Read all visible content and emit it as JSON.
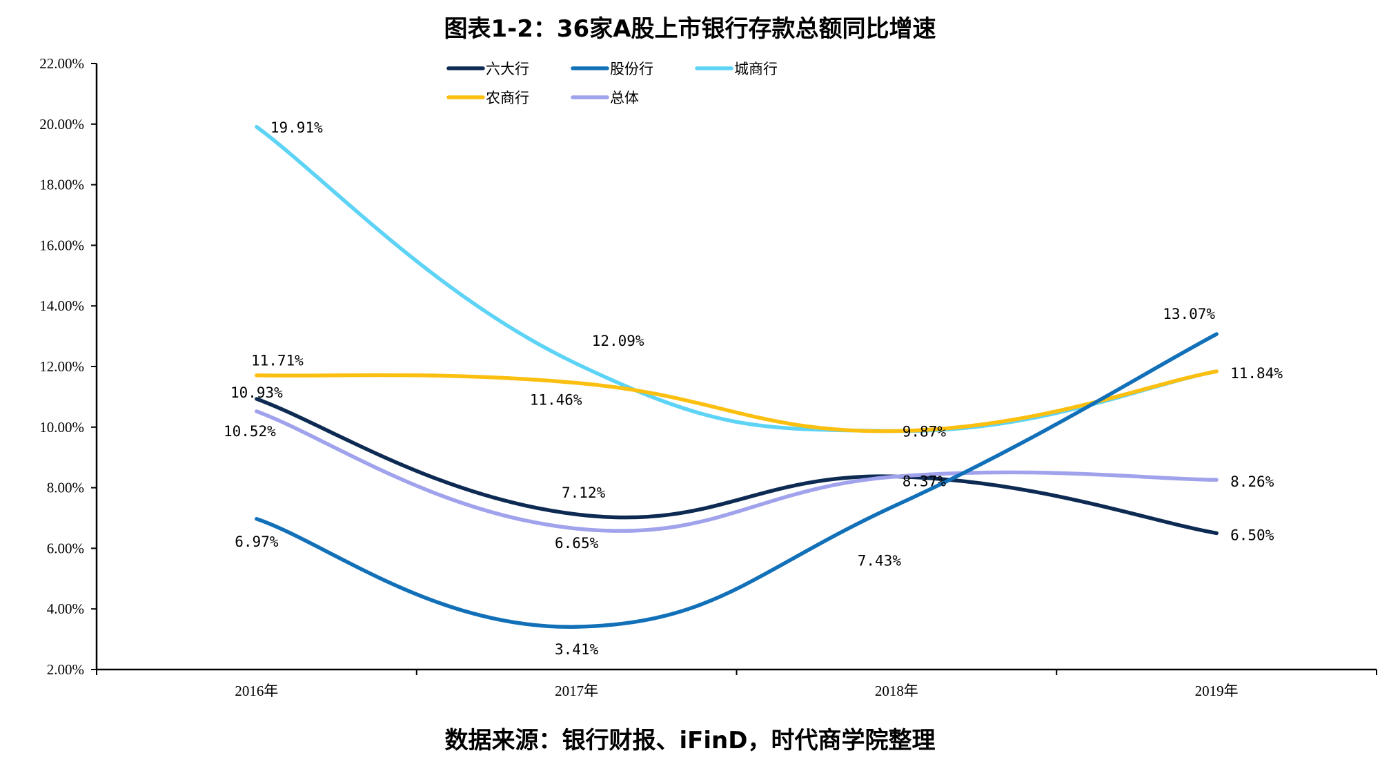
{
  "title": "图表1-2：36家A股上市银行存款总额同比增速",
  "source": "数据来源：银行财报、iFinD，时代商学院整理",
  "chart_data": {
    "type": "line",
    "title": "图表1-2：36家A股上市银行存款总额同比增速",
    "xlabel": "",
    "ylabel": "",
    "categories": [
      "2016年",
      "2017年",
      "2018年",
      "2019年"
    ],
    "ylim": [
      2,
      22
    ],
    "yticks": [
      2,
      4,
      6,
      8,
      10,
      12,
      14,
      16,
      18,
      20,
      22
    ],
    "ytick_labels": [
      "2.00%",
      "4.00%",
      "6.00%",
      "8.00%",
      "10.00%",
      "12.00%",
      "14.00%",
      "16.00%",
      "18.00%",
      "20.00%",
      "22.00%"
    ],
    "grid": false,
    "legend_position": "top-center",
    "smooth": true,
    "series": [
      {
        "name": "六大行",
        "color": "#0d2a52",
        "values": [
          10.93,
          7.12,
          8.37,
          6.5
        ],
        "labels": [
          "10.93%",
          "7.12%",
          "8.37%",
          "6.50%"
        ]
      },
      {
        "name": "股份行",
        "color": "#1170b8",
        "values": [
          6.97,
          3.41,
          7.43,
          13.07
        ],
        "labels": [
          "6.97%",
          "3.41%",
          "7.43%",
          "13.07%"
        ]
      },
      {
        "name": "城商行",
        "color": "#5dd3f5",
        "values": [
          19.91,
          12.09,
          9.87,
          11.84
        ],
        "labels": [
          "19.91%",
          "12.09%",
          "9.87%",
          "11.84%"
        ]
      },
      {
        "name": "农商行",
        "color": "#fbbf10",
        "values": [
          11.71,
          11.46,
          9.87,
          11.84
        ],
        "labels": [
          "11.71%",
          "11.46%",
          "9.87%",
          "11.84%"
        ]
      },
      {
        "name": "总体",
        "color": "#a0a2ec",
        "values": [
          10.52,
          6.65,
          8.37,
          8.26
        ],
        "labels": [
          "10.52%",
          "6.65%",
          "8.37%",
          "8.26%"
        ]
      }
    ]
  }
}
